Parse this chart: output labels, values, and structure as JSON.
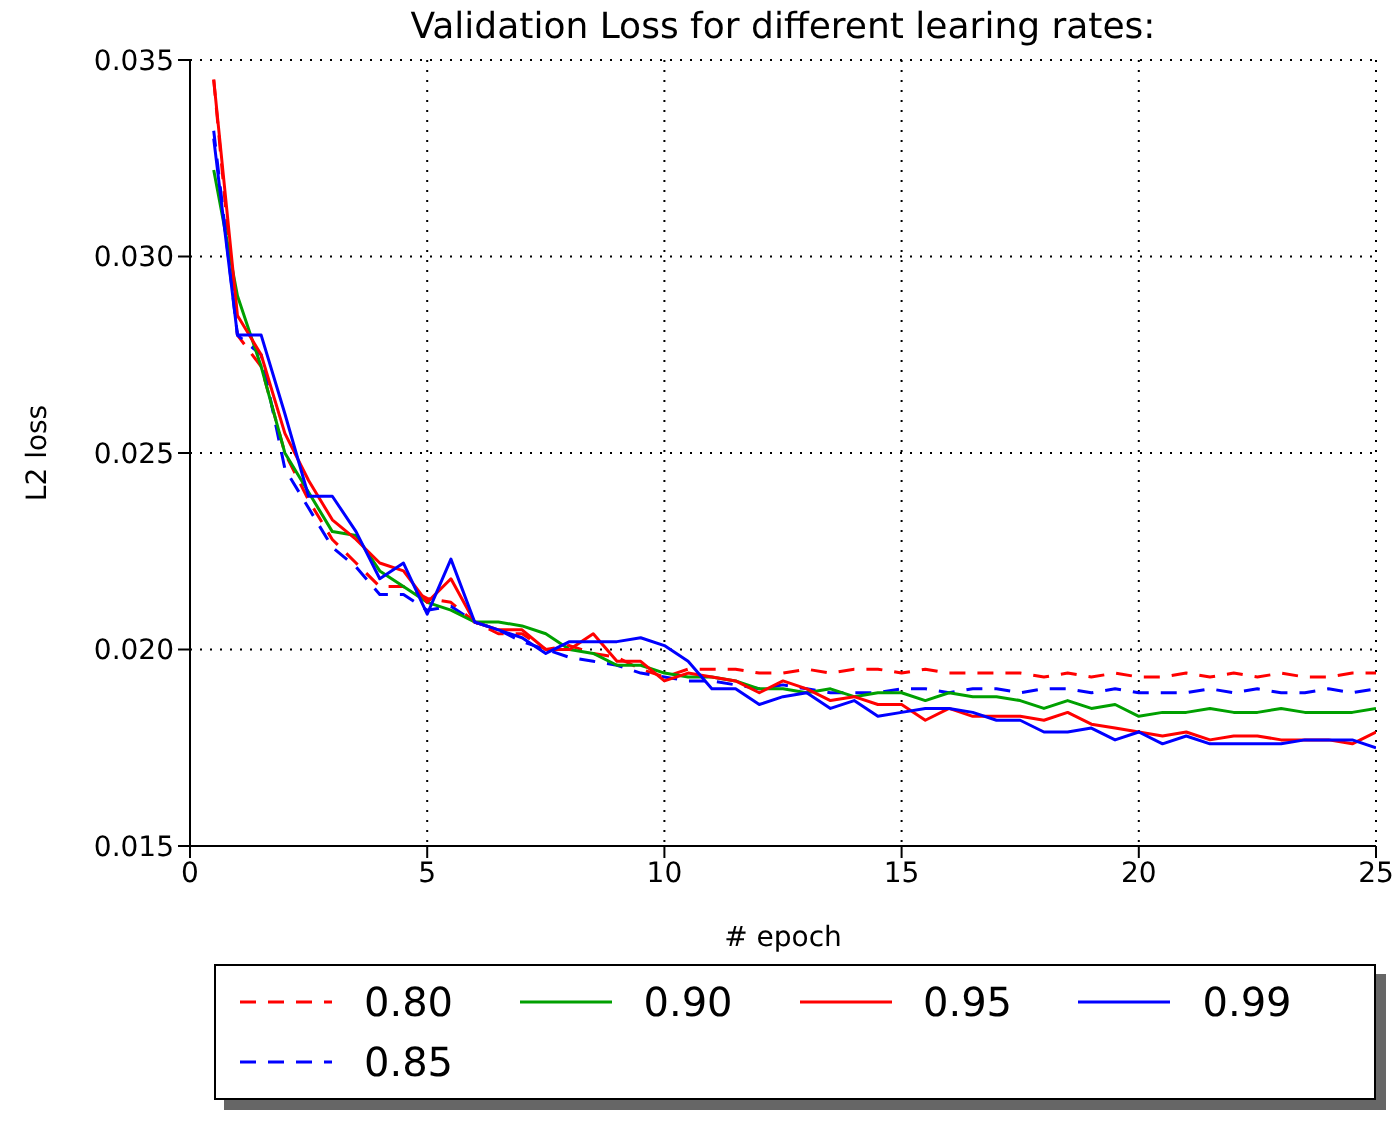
{
  "chart_data": {
    "type": "line",
    "title": "Validation Loss for different learing rates:",
    "xlabel": "# epoch",
    "ylabel": "L2 loss",
    "x": [
      0.5,
      1,
      1.5,
      2,
      2.5,
      3,
      3.5,
      4,
      4.5,
      5,
      5.5,
      6,
      6.5,
      7,
      7.5,
      8,
      8.5,
      9,
      9.5,
      10,
      10.5,
      11,
      11.5,
      12,
      12.5,
      13,
      13.5,
      14,
      14.5,
      15,
      15.5,
      16,
      16.5,
      17,
      17.5,
      18,
      18.5,
      19,
      19.5,
      20,
      20.5,
      21,
      21.5,
      22,
      22.5,
      23,
      23.5,
      24,
      24.5,
      25
    ],
    "series": [
      {
        "name": "0.80",
        "color": "#ff0000",
        "line_style": "dashed",
        "values": [
          0.0345,
          0.028,
          0.0272,
          0.025,
          0.0238,
          0.0228,
          0.0222,
          0.0216,
          0.0216,
          0.0213,
          0.0212,
          0.0207,
          0.0204,
          0.0204,
          0.02,
          0.0201,
          0.0199,
          0.0198,
          0.0195,
          0.0193,
          0.0195,
          0.0195,
          0.0195,
          0.0194,
          0.0194,
          0.0195,
          0.0194,
          0.0195,
          0.0195,
          0.0194,
          0.0195,
          0.0194,
          0.0194,
          0.0194,
          0.0194,
          0.0193,
          0.0194,
          0.0193,
          0.0194,
          0.0193,
          0.0193,
          0.0194,
          0.0193,
          0.0194,
          0.0193,
          0.0194,
          0.0193,
          0.0193,
          0.0194,
          0.0194
        ]
      },
      {
        "name": "0.85",
        "color": "#0000ff",
        "line_style": "dashed",
        "values": [
          0.0332,
          0.028,
          0.0275,
          0.0246,
          0.0236,
          0.0226,
          0.0221,
          0.0214,
          0.0214,
          0.021,
          0.0211,
          0.0207,
          0.0205,
          0.0202,
          0.02,
          0.0198,
          0.0197,
          0.0196,
          0.0194,
          0.0193,
          0.0192,
          0.0192,
          0.0191,
          0.019,
          0.0191,
          0.019,
          0.0189,
          0.0189,
          0.0189,
          0.019,
          0.019,
          0.0189,
          0.019,
          0.019,
          0.0189,
          0.019,
          0.019,
          0.0189,
          0.019,
          0.0189,
          0.0189,
          0.0189,
          0.019,
          0.0189,
          0.019,
          0.0189,
          0.0189,
          0.019,
          0.0189,
          0.019
        ]
      },
      {
        "name": "0.90",
        "color": "#00a000",
        "line_style": "solid",
        "values": [
          0.0322,
          0.029,
          0.0272,
          0.025,
          0.024,
          0.023,
          0.0229,
          0.022,
          0.0216,
          0.0212,
          0.021,
          0.0207,
          0.0207,
          0.0206,
          0.0204,
          0.02,
          0.0199,
          0.0196,
          0.0196,
          0.0194,
          0.0193,
          0.0193,
          0.0192,
          0.019,
          0.019,
          0.0189,
          0.019,
          0.0188,
          0.0189,
          0.0189,
          0.0187,
          0.0189,
          0.0188,
          0.0188,
          0.0187,
          0.0185,
          0.0187,
          0.0185,
          0.0186,
          0.0183,
          0.0184,
          0.0184,
          0.0185,
          0.0184,
          0.0184,
          0.0185,
          0.0184,
          0.0184,
          0.0184,
          0.0185
        ]
      },
      {
        "name": "0.95",
        "color": "#ff0000",
        "line_style": "solid",
        "values": [
          0.0345,
          0.0285,
          0.0275,
          0.0255,
          0.0243,
          0.0233,
          0.0228,
          0.0222,
          0.022,
          0.0212,
          0.0218,
          0.0207,
          0.0205,
          0.0205,
          0.02,
          0.02,
          0.0204,
          0.0197,
          0.0197,
          0.0192,
          0.0194,
          0.0193,
          0.0192,
          0.0189,
          0.0192,
          0.019,
          0.0187,
          0.0188,
          0.0186,
          0.0186,
          0.0182,
          0.0185,
          0.0183,
          0.0183,
          0.0183,
          0.0182,
          0.0184,
          0.0181,
          0.018,
          0.0179,
          0.0178,
          0.0179,
          0.0177,
          0.0178,
          0.0178,
          0.0177,
          0.0177,
          0.0177,
          0.0176,
          0.0179
        ]
      },
      {
        "name": "0.99",
        "color": "#0000ff",
        "line_style": "solid",
        "values": [
          0.033,
          0.028,
          0.028,
          0.026,
          0.0239,
          0.0239,
          0.023,
          0.0218,
          0.0222,
          0.0209,
          0.0223,
          0.0207,
          0.0205,
          0.0203,
          0.0199,
          0.0202,
          0.0202,
          0.0202,
          0.0203,
          0.0201,
          0.0197,
          0.019,
          0.019,
          0.0186,
          0.0188,
          0.0189,
          0.0185,
          0.0187,
          0.0183,
          0.0184,
          0.0185,
          0.0185,
          0.0184,
          0.0182,
          0.0182,
          0.0179,
          0.0179,
          0.018,
          0.0177,
          0.0179,
          0.0176,
          0.0178,
          0.0176,
          0.0176,
          0.0176,
          0.0176,
          0.0177,
          0.0177,
          0.0177,
          0.0175
        ]
      }
    ],
    "xlim": [
      0,
      25
    ],
    "xticks": [
      0,
      5,
      10,
      15,
      20,
      25
    ],
    "ylim": [
      0.015,
      0.035
    ],
    "yticks": [
      {
        "value": 0.015,
        "label": "0.015"
      },
      {
        "value": 0.02,
        "label": "0.020"
      },
      {
        "value": 0.025,
        "label": "0.025"
      },
      {
        "value": 0.03,
        "label": "0.030"
      },
      {
        "value": 0.035,
        "label": "0.035"
      }
    ],
    "grid": true,
    "legend": "bottom"
  }
}
